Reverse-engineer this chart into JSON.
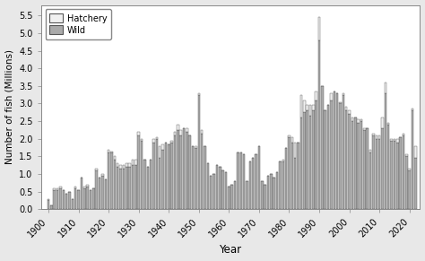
{
  "years": [
    1900,
    1901,
    1902,
    1903,
    1904,
    1905,
    1906,
    1907,
    1908,
    1909,
    1910,
    1911,
    1912,
    1913,
    1914,
    1915,
    1916,
    1917,
    1918,
    1919,
    1920,
    1921,
    1922,
    1923,
    1924,
    1925,
    1926,
    1927,
    1928,
    1929,
    1930,
    1931,
    1932,
    1933,
    1934,
    1935,
    1936,
    1937,
    1938,
    1939,
    1940,
    1941,
    1942,
    1943,
    1944,
    1945,
    1946,
    1947,
    1948,
    1949,
    1950,
    1951,
    1952,
    1953,
    1954,
    1955,
    1956,
    1957,
    1958,
    1959,
    1960,
    1961,
    1962,
    1963,
    1964,
    1965,
    1966,
    1967,
    1968,
    1969,
    1970,
    1971,
    1972,
    1973,
    1974,
    1975,
    1976,
    1977,
    1978,
    1979,
    1980,
    1981,
    1982,
    1983,
    1984,
    1985,
    1986,
    1987,
    1988,
    1989,
    1990,
    1991,
    1992,
    1993,
    1994,
    1995,
    1996,
    1997,
    1998,
    1999,
    2000,
    2001,
    2002,
    2003,
    2004,
    2005,
    2006,
    2007,
    2008,
    2009,
    2010,
    2011,
    2012,
    2013,
    2014,
    2015,
    2016,
    2017,
    2018,
    2019,
    2020,
    2021,
    2022
  ],
  "wild": [
    0.25,
    0.1,
    0.55,
    0.55,
    0.6,
    0.55,
    0.45,
    0.5,
    0.3,
    0.6,
    0.55,
    0.9,
    0.6,
    0.65,
    0.55,
    0.6,
    1.1,
    0.9,
    0.95,
    0.85,
    1.6,
    1.6,
    1.4,
    1.2,
    1.15,
    1.15,
    1.2,
    1.2,
    1.25,
    1.25,
    2.1,
    1.95,
    1.4,
    1.2,
    1.4,
    1.9,
    2.0,
    1.45,
    1.7,
    1.9,
    1.85,
    1.9,
    2.1,
    2.25,
    2.1,
    2.3,
    2.2,
    2.1,
    1.8,
    1.75,
    3.25,
    2.15,
    1.8,
    1.3,
    0.95,
    1.0,
    1.25,
    1.2,
    1.1,
    1.05,
    0.65,
    0.7,
    0.8,
    1.6,
    1.6,
    1.55,
    0.8,
    1.35,
    1.45,
    1.55,
    1.8,
    0.8,
    0.7,
    0.95,
    1.0,
    0.9,
    1.05,
    1.35,
    1.35,
    1.75,
    2.05,
    1.9,
    1.45,
    1.9,
    2.6,
    2.75,
    2.8,
    2.65,
    2.8,
    3.1,
    4.8,
    3.5,
    2.8,
    2.95,
    3.1,
    3.35,
    3.3,
    3.0,
    3.25,
    2.8,
    2.7,
    2.5,
    2.6,
    2.45,
    2.5,
    2.25,
    2.3,
    1.6,
    2.1,
    2.0,
    2.0,
    2.3,
    3.3,
    2.4,
    1.95,
    1.95,
    1.9,
    2.05,
    2.1,
    1.5,
    1.1,
    2.8,
    1.45
  ],
  "hatchery": [
    0.05,
    0.0,
    0.05,
    0.05,
    0.05,
    0.0,
    0.0,
    0.0,
    0.0,
    0.05,
    0.0,
    0.0,
    0.05,
    0.05,
    0.0,
    0.0,
    0.05,
    0.0,
    0.05,
    0.0,
    0.1,
    0.05,
    0.1,
    0.1,
    0.1,
    0.1,
    0.1,
    0.1,
    0.15,
    0.15,
    0.1,
    0.05,
    0.0,
    0.0,
    0.0,
    0.1,
    0.05,
    0.35,
    0.15,
    0.0,
    0.0,
    0.05,
    0.1,
    0.15,
    0.15,
    0.0,
    0.1,
    0.0,
    0.0,
    0.05,
    0.05,
    0.1,
    0.0,
    0.0,
    0.0,
    0.0,
    0.0,
    0.0,
    0.0,
    0.0,
    0.0,
    0.0,
    0.0,
    0.0,
    0.0,
    0.0,
    0.0,
    0.0,
    0.0,
    0.0,
    0.0,
    0.0,
    0.0,
    0.0,
    0.0,
    0.0,
    0.0,
    0.0,
    0.05,
    0.0,
    0.05,
    0.15,
    0.45,
    0.0,
    0.65,
    0.35,
    0.15,
    0.3,
    0.15,
    0.25,
    0.65,
    0.0,
    0.0,
    0.0,
    0.2,
    0.0,
    0.0,
    0.05,
    0.05,
    0.1,
    0.1,
    0.1,
    0.0,
    0.1,
    0.05,
    0.05,
    0.0,
    0.1,
    0.05,
    0.1,
    0.1,
    0.3,
    0.3,
    0.05,
    0.05,
    0.05,
    0.1,
    0.0,
    0.05,
    0.05,
    0.05,
    0.05,
    0.35
  ],
  "wild_color": "#aaaaaa",
  "hatchery_color": "#f0f0f0",
  "bar_edge_color": "#555555",
  "bar_linewidth": 0.3,
  "ylabel": "Number of fish (Millions)",
  "xlabel": "Year",
  "ylim": [
    0,
    5.8
  ],
  "yticks": [
    0.0,
    0.5,
    1.0,
    1.5,
    2.0,
    2.5,
    3.0,
    3.5,
    4.0,
    4.5,
    5.0,
    5.5
  ],
  "xtick_labels": [
    "1900",
    "1910",
    "1920",
    "1930",
    "1940",
    "1950",
    "1960",
    "1970",
    "1980",
    "1990",
    "2000",
    "2010",
    "2020"
  ],
  "xtick_positions": [
    1900,
    1910,
    1920,
    1930,
    1940,
    1950,
    1960,
    1970,
    1980,
    1990,
    2000,
    2010,
    2020
  ],
  "legend_labels": [
    "Hatchery",
    "Wild"
  ],
  "legend_facecolors": [
    "#f0f0f0",
    "#aaaaaa"
  ],
  "bg_color": "#e8e8e8",
  "plot_bg_color": "#ffffff",
  "bar_width": 0.75,
  "xlim_left": 1897.5,
  "xlim_right": 2023.5
}
